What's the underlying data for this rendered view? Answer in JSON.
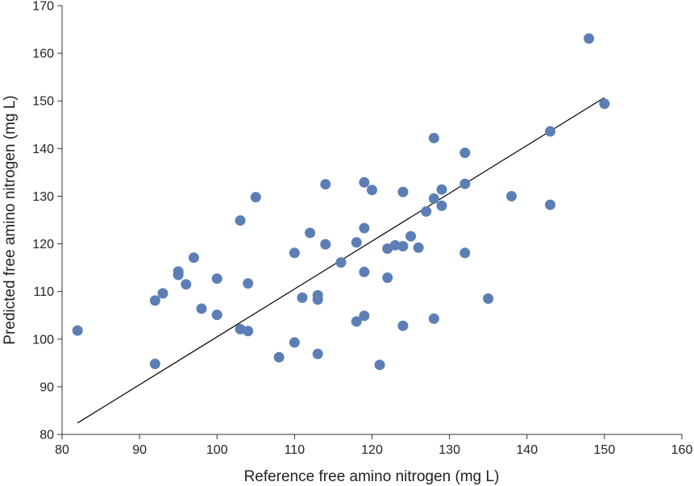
{
  "chart_data": {
    "type": "scatter",
    "title": "",
    "xlabel": "Reference free amino nitrogen (mg L)",
    "ylabel": "Predicted free amino nitrogen (mg L)",
    "xlim": [
      80,
      160
    ],
    "ylim": [
      80,
      170
    ],
    "xticks": [
      "80",
      "90",
      "100",
      "110",
      "120",
      "130",
      "140",
      "150",
      "160"
    ],
    "yticks": [
      "80",
      "90",
      "100",
      "110",
      "120",
      "130",
      "140",
      "150",
      "160",
      "170"
    ],
    "grid": false,
    "legend": "none",
    "marker_color": "#5b7fb5",
    "trendline": {
      "x": [
        82,
        150
      ],
      "y": [
        82.4,
        150.7
      ]
    },
    "series": [
      {
        "points": [
          [
            82,
            101.8
          ],
          [
            92,
            108.1
          ],
          [
            92,
            94.8
          ],
          [
            93,
            109.6
          ],
          [
            95,
            114.2
          ],
          [
            95,
            113.5
          ],
          [
            96,
            111.5
          ],
          [
            97,
            117.1
          ],
          [
            98,
            106.4
          ],
          [
            100,
            112.7
          ],
          [
            100,
            105.1
          ],
          [
            103,
            124.9
          ],
          [
            103,
            102.1
          ],
          [
            104,
            111.7
          ],
          [
            104,
            101.7
          ],
          [
            105,
            129.8
          ],
          [
            108,
            96.2
          ],
          [
            110,
            118.1
          ],
          [
            110,
            99.3
          ],
          [
            111,
            108.7
          ],
          [
            112,
            122.3
          ],
          [
            113,
            109.2
          ],
          [
            113,
            108.3
          ],
          [
            113,
            96.9
          ],
          [
            114,
            132.5
          ],
          [
            114,
            119.9
          ],
          [
            116,
            116.1
          ],
          [
            118,
            120.3
          ],
          [
            118,
            103.7
          ],
          [
            119,
            132.9
          ],
          [
            119,
            123.3
          ],
          [
            119,
            114.1
          ],
          [
            119,
            104.9
          ],
          [
            120,
            131.3
          ],
          [
            121,
            94.6
          ],
          [
            122,
            119.0
          ],
          [
            122,
            112.9
          ],
          [
            123,
            119.7
          ],
          [
            124,
            130.9
          ],
          [
            124,
            119.5
          ],
          [
            124,
            102.8
          ],
          [
            125,
            121.6
          ],
          [
            126,
            119.2
          ],
          [
            127,
            126.8
          ],
          [
            128,
            142.2
          ],
          [
            128,
            129.5
          ],
          [
            128,
            104.3
          ],
          [
            129,
            131.4
          ],
          [
            129,
            128.0
          ],
          [
            132,
            139.1
          ],
          [
            132,
            132.6
          ],
          [
            132,
            118.1
          ],
          [
            135,
            108.5
          ],
          [
            138,
            130.0
          ],
          [
            143,
            143.6
          ],
          [
            143,
            128.2
          ],
          [
            148,
            163.1
          ],
          [
            150,
            149.4
          ]
        ]
      }
    ]
  }
}
